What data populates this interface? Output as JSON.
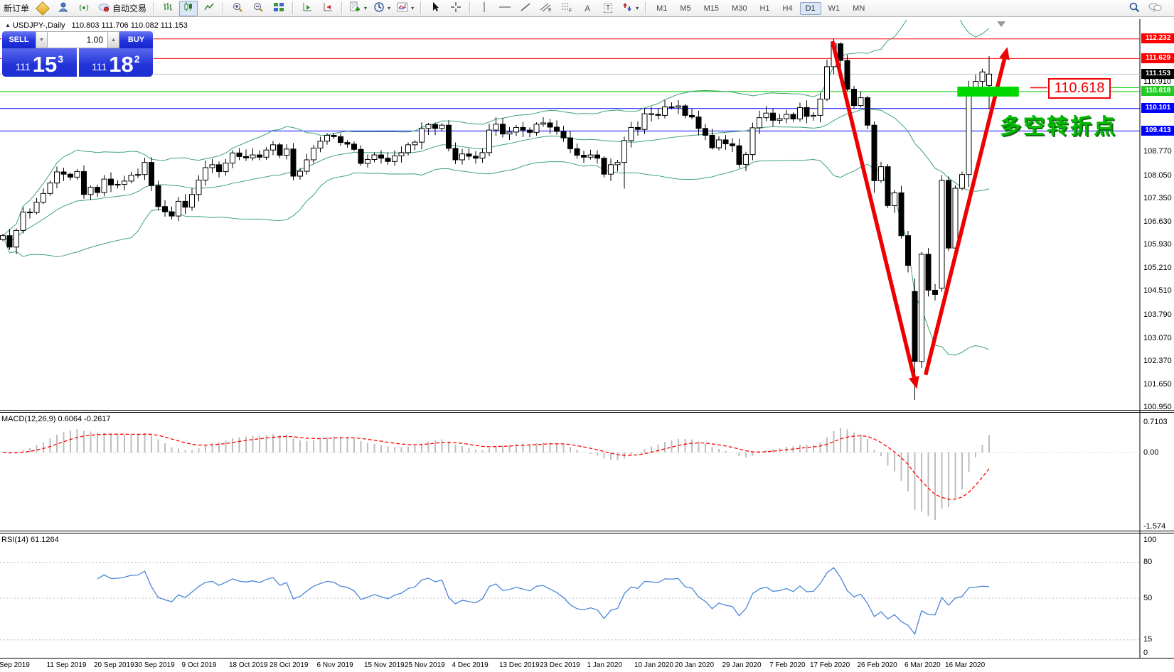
{
  "toolbar": {
    "new_order": "新订单",
    "auto_trading": "自动交易",
    "timeframes": [
      {
        "label": "M1"
      },
      {
        "label": "M5"
      },
      {
        "label": "M15"
      },
      {
        "label": "M30"
      },
      {
        "label": "H1"
      },
      {
        "label": "H4"
      },
      {
        "label": "D1"
      },
      {
        "label": "W1"
      },
      {
        "label": "MN"
      }
    ],
    "selected_timeframe": "D1"
  },
  "chart": {
    "title_marker": "▲",
    "symbol_title": "USDJPY-,Daily",
    "title_ohlc": "110.803 111.706 110.082 111.153"
  },
  "trade_panel": {
    "sell_label": "SELL",
    "buy_label": "BUY",
    "volume": "1.00",
    "spin_down": "▼",
    "spin_up": "▲",
    "sell_price": {
      "prefix": "111",
      "big": "15",
      "sup": "3"
    },
    "buy_price": {
      "prefix": "111",
      "big": "18",
      "sup": "2"
    }
  },
  "annotations": {
    "level_label": "110.618",
    "turning_point": "多空转折点"
  },
  "macd_pane": {
    "label": "MACD(12,26,9) 0.6064 -0.2617",
    "axis": [
      "0.7103",
      "0.00",
      "-1.574"
    ]
  },
  "rsi_pane": {
    "label": "RSI(14) 61.1264",
    "axis": [
      "100",
      "80",
      "50",
      "15",
      "0"
    ],
    "levels": [
      80,
      50,
      15
    ]
  },
  "price_axis": {
    "ticks": [
      "110.910",
      "108.770",
      "108.050",
      "107.350",
      "106.630",
      "105.930",
      "105.210",
      "104.510",
      "103.790",
      "103.070",
      "102.370",
      "101.650",
      "100.950"
    ]
  },
  "date_axis": [
    {
      "label": "Sep 2019",
      "i": 0
    },
    {
      "label": "11 Sep 2019",
      "i": 7
    },
    {
      "label": "20 Sep 2019",
      "i": 14
    },
    {
      "label": "30 Sep 2019",
      "i": 20
    },
    {
      "label": "9 Oct 2019",
      "i": 27
    },
    {
      "label": "18 Oct 2019",
      "i": 34
    },
    {
      "label": "28 Oct 2019",
      "i": 40
    },
    {
      "label": "6 Nov 2019",
      "i": 47
    },
    {
      "label": "15 Nov 2019",
      "i": 54
    },
    {
      "label": "25 Nov 2019",
      "i": 60
    },
    {
      "label": "4 Dec 2019",
      "i": 67
    },
    {
      "label": "13 Dec 2019",
      "i": 74
    },
    {
      "label": "23 Dec 2019",
      "i": 80
    },
    {
      "label": "1 Jan 2020",
      "i": 87
    },
    {
      "label": "10 Jan 2020",
      "i": 94
    },
    {
      "label": "20 Jan 2020",
      "i": 100
    },
    {
      "label": "29 Jan 2020",
      "i": 107
    },
    {
      "label": "7 Feb 2020",
      "i": 114
    },
    {
      "label": "17 Feb 2020",
      "i": 120
    },
    {
      "label": "26 Feb 2020",
      "i": 127
    },
    {
      "label": "6 Mar 2020",
      "i": 134
    },
    {
      "label": "16 Mar 2020",
      "i": 140
    }
  ],
  "chart_data": {
    "type": "candlestick",
    "symbol": "USDJPY",
    "timeframe": "Daily",
    "title": "USDJPY-,Daily",
    "current_ohlc": {
      "open": 110.803,
      "high": 111.706,
      "low": 110.082,
      "close": 111.153
    },
    "ylim": [
      100.88,
      112.81
    ],
    "closes": [
      106.21,
      105.86,
      106.37,
      106.93,
      106.92,
      107.23,
      107.5,
      107.82,
      108.16,
      108.09,
      108.0,
      108.17,
      107.47,
      107.69,
      107.53,
      107.94,
      107.76,
      107.78,
      107.88,
      108.06,
      108.08,
      108.45,
      107.74,
      107.1,
      106.94,
      106.81,
      107.26,
      107.08,
      107.47,
      107.91,
      108.29,
      108.38,
      108.17,
      108.43,
      108.74,
      108.63,
      108.59,
      108.68,
      108.61,
      108.83,
      108.99,
      108.67,
      108.86,
      108.03,
      108.18,
      108.53,
      108.89,
      109.1,
      109.28,
      109.24,
      109.06,
      109.01,
      108.85,
      108.42,
      108.54,
      108.68,
      108.58,
      108.48,
      108.65,
      108.75,
      108.99,
      109.07,
      109.49,
      109.61,
      109.49,
      109.59,
      108.88,
      108.53,
      108.71,
      108.64,
      108.58,
      108.75,
      109.44,
      109.62,
      109.32,
      109.38,
      109.52,
      109.44,
      109.37,
      109.62,
      109.66,
      109.53,
      109.4,
      109.2,
      108.87,
      108.67,
      108.61,
      108.68,
      108.58,
      108.09,
      108.38,
      108.45,
      109.12,
      109.52,
      109.46,
      109.94,
      109.92,
      109.89,
      110.15,
      110.14,
      110.18,
      109.89,
      109.84,
      109.49,
      109.28,
      108.9,
      109.14,
      109.02,
      108.96,
      108.39,
      108.69,
      109.51,
      109.82,
      109.96,
      109.74,
      109.79,
      109.92,
      109.78,
      110.13,
      109.86,
      109.89,
      110.39,
      111.38,
      112.08,
      111.57,
      110.69,
      110.19,
      110.43,
      109.59,
      107.89,
      108.32,
      107.13,
      107.52,
      106.21,
      105.3,
      102.36,
      105.64,
      104.54,
      104.41,
      107.9,
      105.83,
      107.66,
      108.08,
      110.71,
      110.93,
      111.22,
      111.153
    ],
    "ohlc_overrides": {
      "92": [
        108.45,
        109.24,
        107.65,
        109.12
      ],
      "123": [
        111.38,
        112.23,
        111.15,
        112.08
      ],
      "129": [
        109.59,
        109.7,
        107.52,
        107.89
      ],
      "135": [
        104.5,
        104.9,
        101.18,
        102.36
      ],
      "139": [
        104.6,
        108.06,
        104.5,
        107.9
      ],
      "143": [
        108.08,
        110.95,
        107.7,
        110.71
      ],
      "146": [
        110.803,
        111.706,
        110.082,
        111.153
      ]
    },
    "indicators": [
      {
        "name": "Bollinger Bands",
        "period": 20,
        "deviation": 2,
        "color": "#3da371"
      },
      {
        "name": "MACD",
        "fast": 12,
        "slow": 26,
        "signal": 9,
        "main": 0.6064,
        "signal_value": -0.2617
      },
      {
        "name": "RSI",
        "period": 14,
        "value": 61.1264
      }
    ],
    "levels": [
      {
        "price": 112.232,
        "color": "#ff0000"
      },
      {
        "price": 111.629,
        "color": "#ff0000"
      },
      {
        "price": 111.153,
        "color": "#000000",
        "line": "#c0c0c0"
      },
      {
        "price": 110.618,
        "color": "#22cc22",
        "line": "#00cc00"
      },
      {
        "price": 110.101,
        "color": "#0000ff"
      },
      {
        "price": 109.413,
        "color": "#0000ff"
      }
    ],
    "macd_axis_values": [
      0.7103,
      0,
      -1.574
    ],
    "rsi_axis_values": [
      100,
      80,
      50,
      15,
      0
    ],
    "drawings": [
      {
        "type": "arrow",
        "dir": "down",
        "from": {
          "i": 122.8,
          "p": 112.16
        },
        "to": {
          "i": 135.3,
          "p": 101.52
        },
        "color": "#ee0000"
      },
      {
        "type": "arrow",
        "dir": "up",
        "from": {
          "i": 136.6,
          "p": 101.95
        },
        "to": {
          "i": 148.7,
          "p": 111.98
        },
        "color": "#ee0000"
      },
      {
        "type": "rect",
        "i1": 141.3,
        "i2": 150.4,
        "p": 110.618,
        "hpx": 7,
        "color": "#00d800"
      },
      {
        "type": "shift_marker",
        "i": 147.8
      }
    ]
  }
}
